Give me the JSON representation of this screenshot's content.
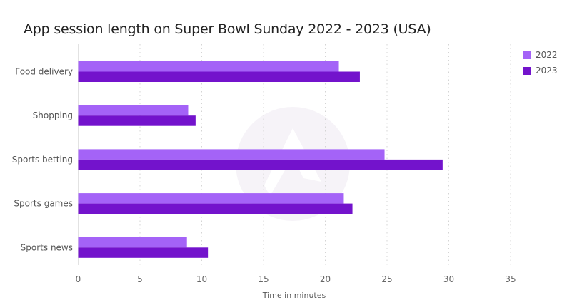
{
  "chart_data": {
    "type": "bar",
    "orientation": "horizontal",
    "title": "App session length on Super Bowl Sunday 2022 - 2023 (USA)",
    "xlabel": "Time in minutes",
    "ylabel": "",
    "categories": [
      "Food delivery",
      "Shopping",
      "Sports betting",
      "Sports games",
      "Sports news"
    ],
    "series": [
      {
        "name": "2022",
        "color": "#a463f7",
        "values": [
          21.1,
          8.9,
          24.8,
          21.5,
          8.8
        ]
      },
      {
        "name": "2023",
        "color": "#7313cc",
        "values": [
          22.8,
          9.5,
          29.5,
          22.2,
          10.5
        ]
      }
    ],
    "xlim": [
      0,
      35
    ],
    "xticks": [
      0,
      5,
      10,
      15,
      20,
      25,
      30,
      35
    ],
    "grid": "vertical-dotted",
    "legend": "top-right"
  }
}
